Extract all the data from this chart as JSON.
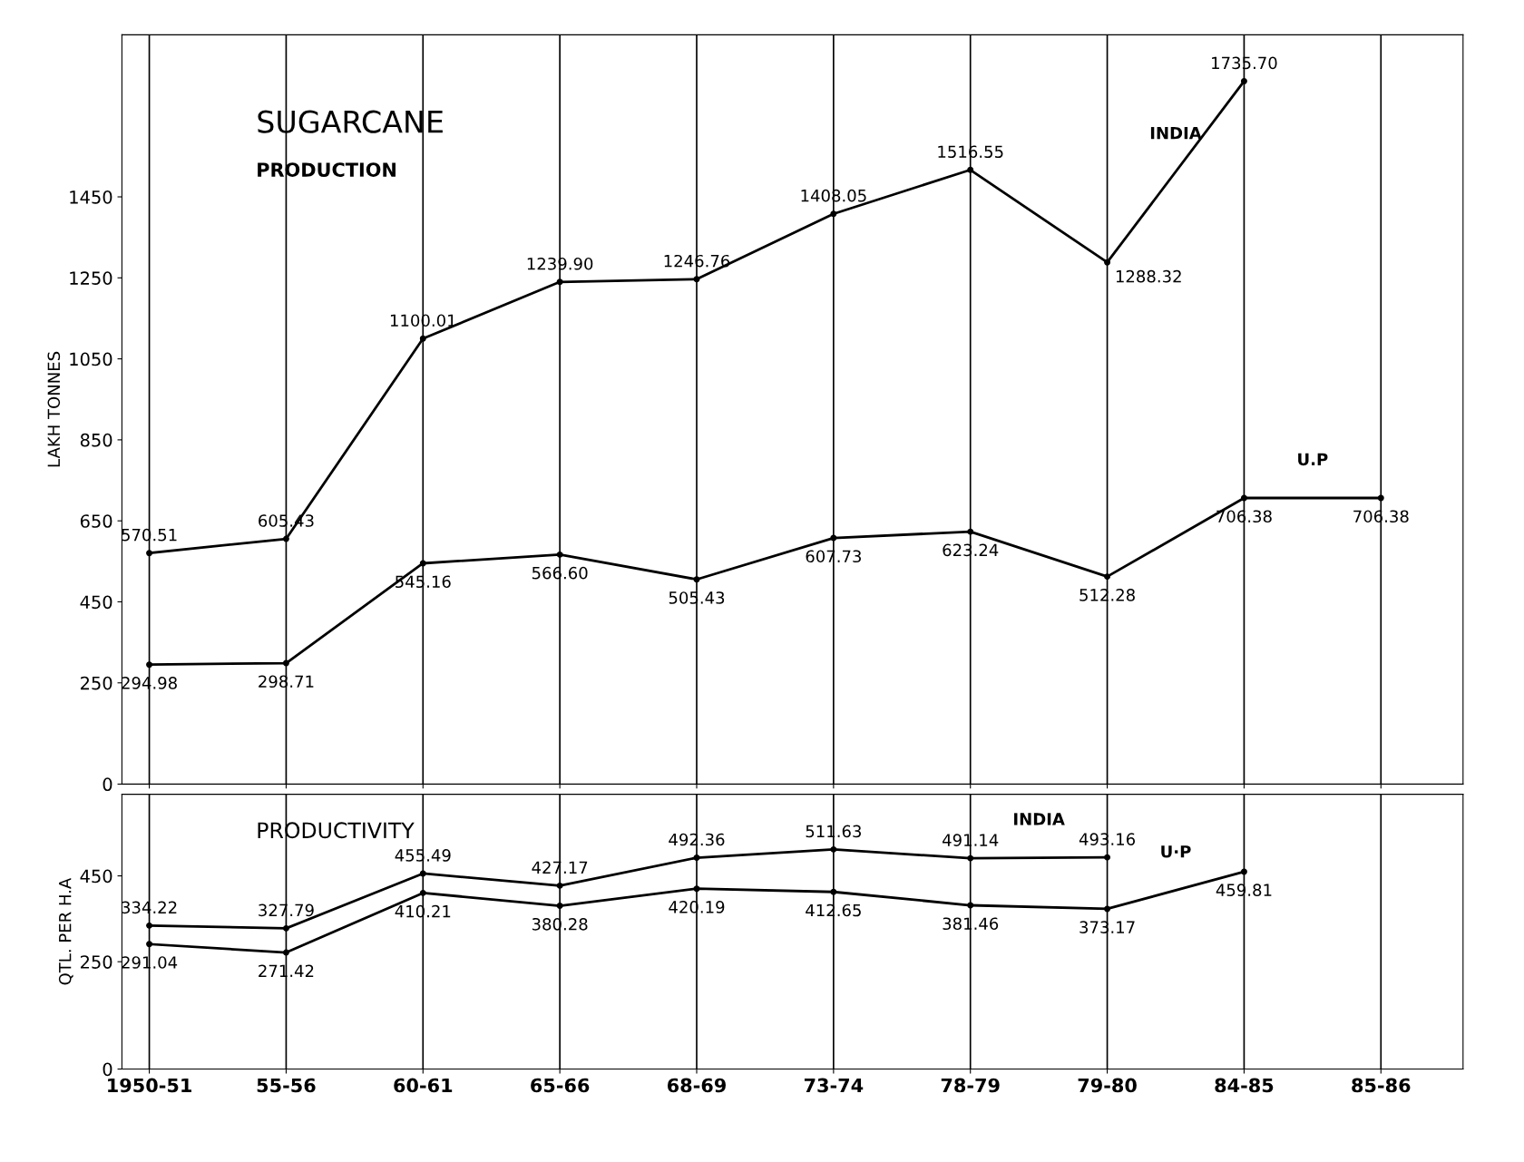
{
  "chart_data": [
    {
      "type": "line",
      "title": "SUGARCANE",
      "subtitle": "PRODUCTION",
      "ylabel": "LAKH TONNES",
      "categories": [
        null,
        null,
        null,
        null,
        null,
        null,
        null,
        null,
        null,
        null
      ],
      "series": [
        {
          "name": "INDIA",
          "color": "#000000",
          "values": [
            570.51,
            605.43,
            1100.01,
            1239.9,
            1246.76,
            1408.05,
            1516.55,
            1288.32,
            1735.7,
            null
          ],
          "value_labels": [
            "570.51",
            "605.43",
            "1100.01",
            "1239.90",
            "1246.76",
            "1408.05",
            "1516.55",
            "1288.32",
            "1735.70",
            null
          ]
        },
        {
          "name": "U.P",
          "color": "#000000",
          "values": [
            294.98,
            298.71,
            545.16,
            566.6,
            505.43,
            607.73,
            623.24,
            512.28,
            706.38,
            706.38
          ],
          "value_labels": [
            "294.98",
            "298.71",
            "545.16",
            "566.60",
            "505.43",
            "607.73",
            "623.24",
            "512.28",
            "706.38",
            "706.38"
          ]
        }
      ],
      "ylim": [
        0,
        1850
      ],
      "yticks": [
        0,
        250,
        450,
        650,
        850,
        1050,
        1250,
        1450
      ],
      "grid": "x",
      "tick_labels": "y",
      "marker": "circle",
      "line_style": "solid",
      "legend": false
    },
    {
      "type": "line",
      "title": "PRODUCTIVITY",
      "ylabel": "QTL. PER H.A",
      "categories": [
        "1950-51",
        "55-56",
        "60-61",
        "65-66",
        "68-69",
        "73-74",
        "78-79",
        "79-80",
        "84-85",
        "85-86"
      ],
      "series": [
        {
          "name": "INDIA",
          "color": "#000000",
          "values": [
            334.22,
            327.79,
            455.49,
            427.17,
            492.36,
            511.63,
            491.14,
            493.16,
            null,
            null
          ],
          "value_labels": [
            "334.22",
            "327.79",
            "455.49",
            "427.17",
            "492.36",
            "511.63",
            "491.14",
            "493.16",
            null,
            null
          ]
        },
        {
          "name": "U·P",
          "color": "#000000",
          "values": [
            291.04,
            271.42,
            410.21,
            380.28,
            420.19,
            412.65,
            381.46,
            373.17,
            459.81,
            null
          ],
          "value_labels": [
            "291.04",
            "271.42",
            "410.21",
            "380.28",
            "420.19",
            "412.65",
            "381.46",
            "373.17",
            "459.81",
            null
          ]
        }
      ],
      "ylim": [
        0,
        640
      ],
      "yticks": [
        0,
        250,
        450
      ],
      "grid": "x",
      "marker": "circle",
      "line_style": "solid",
      "legend": false
    }
  ]
}
